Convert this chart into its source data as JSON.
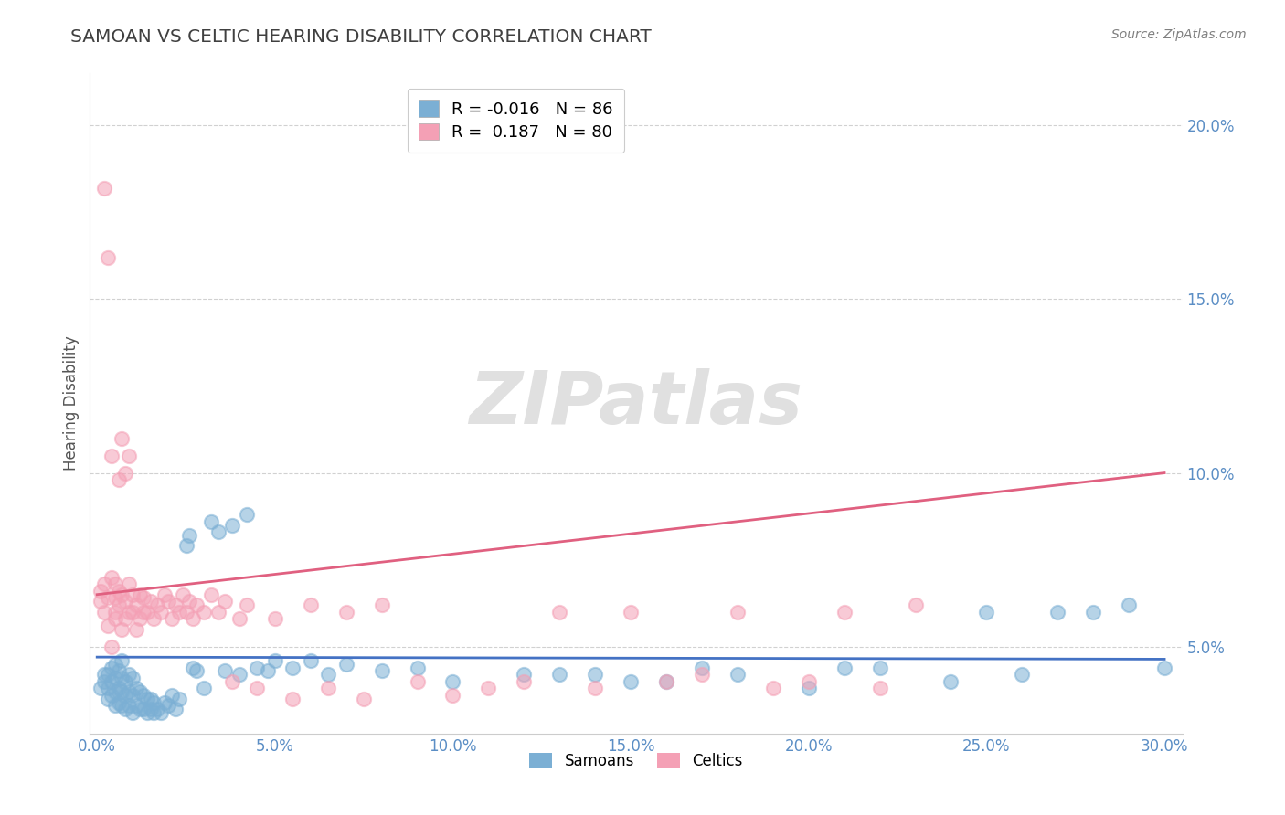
{
  "title": "SAMOAN VS CELTIC HEARING DISABILITY CORRELATION CHART",
  "source_text": "Source: ZipAtlas.com",
  "ylabel": "Hearing Disability",
  "xlim": [
    -0.002,
    0.305
  ],
  "ylim": [
    0.025,
    0.215
  ],
  "xticks": [
    0.0,
    0.05,
    0.1,
    0.15,
    0.2,
    0.25,
    0.3
  ],
  "xtick_labels": [
    "0.0%",
    "5.0%",
    "10.0%",
    "15.0%",
    "20.0%",
    "25.0%",
    "30.0%"
  ],
  "yticks": [
    0.05,
    0.1,
    0.15,
    0.2
  ],
  "ytick_labels": [
    "5.0%",
    "10.0%",
    "15.0%",
    "20.0%"
  ],
  "samoan_color": "#7BAFD4",
  "celtic_color": "#F4A0B5",
  "samoan_line_color": "#4472C4",
  "celtic_line_color": "#E06080",
  "samoan_R": -0.016,
  "samoan_N": 86,
  "celtic_R": 0.187,
  "celtic_N": 80,
  "watermark": "ZIPatlas",
  "background_color": "#FFFFFF",
  "grid_color": "#CCCCCC",
  "title_color": "#404040",
  "tick_color": "#5B8EC5",
  "ylabel_color": "#555555",
  "source_color": "#808080",
  "samoan_x": [
    0.001,
    0.002,
    0.002,
    0.003,
    0.003,
    0.003,
    0.004,
    0.004,
    0.004,
    0.005,
    0.005,
    0.005,
    0.005,
    0.006,
    0.006,
    0.006,
    0.007,
    0.007,
    0.007,
    0.007,
    0.008,
    0.008,
    0.008,
    0.009,
    0.009,
    0.009,
    0.01,
    0.01,
    0.01,
    0.011,
    0.011,
    0.012,
    0.012,
    0.013,
    0.013,
    0.014,
    0.014,
    0.015,
    0.015,
    0.016,
    0.016,
    0.017,
    0.018,
    0.019,
    0.02,
    0.021,
    0.022,
    0.023,
    0.025,
    0.026,
    0.027,
    0.028,
    0.03,
    0.032,
    0.034,
    0.036,
    0.038,
    0.04,
    0.042,
    0.045,
    0.048,
    0.05,
    0.055,
    0.06,
    0.065,
    0.07,
    0.08,
    0.09,
    0.1,
    0.12,
    0.14,
    0.16,
    0.18,
    0.2,
    0.22,
    0.24,
    0.26,
    0.27,
    0.28,
    0.29,
    0.13,
    0.15,
    0.17,
    0.21,
    0.25,
    0.3
  ],
  "samoan_y": [
    0.038,
    0.04,
    0.042,
    0.035,
    0.038,
    0.042,
    0.036,
    0.04,
    0.044,
    0.033,
    0.037,
    0.041,
    0.045,
    0.034,
    0.038,
    0.043,
    0.033,
    0.037,
    0.041,
    0.046,
    0.032,
    0.036,
    0.04,
    0.033,
    0.037,
    0.042,
    0.031,
    0.036,
    0.041,
    0.033,
    0.038,
    0.032,
    0.037,
    0.032,
    0.036,
    0.031,
    0.035,
    0.032,
    0.035,
    0.031,
    0.034,
    0.032,
    0.031,
    0.034,
    0.033,
    0.036,
    0.032,
    0.035,
    0.079,
    0.082,
    0.044,
    0.043,
    0.038,
    0.086,
    0.083,
    0.043,
    0.085,
    0.042,
    0.088,
    0.044,
    0.043,
    0.046,
    0.044,
    0.046,
    0.042,
    0.045,
    0.043,
    0.044,
    0.04,
    0.042,
    0.042,
    0.04,
    0.042,
    0.038,
    0.044,
    0.04,
    0.042,
    0.06,
    0.06,
    0.062,
    0.042,
    0.04,
    0.044,
    0.044,
    0.06,
    0.044
  ],
  "celtic_x": [
    0.001,
    0.001,
    0.002,
    0.002,
    0.002,
    0.003,
    0.003,
    0.003,
    0.004,
    0.004,
    0.004,
    0.005,
    0.005,
    0.005,
    0.005,
    0.006,
    0.006,
    0.006,
    0.007,
    0.007,
    0.007,
    0.008,
    0.008,
    0.008,
    0.009,
    0.009,
    0.009,
    0.01,
    0.01,
    0.011,
    0.011,
    0.012,
    0.012,
    0.013,
    0.013,
    0.014,
    0.015,
    0.016,
    0.017,
    0.018,
    0.019,
    0.02,
    0.021,
    0.022,
    0.023,
    0.024,
    0.025,
    0.026,
    0.027,
    0.028,
    0.03,
    0.032,
    0.034,
    0.036,
    0.038,
    0.04,
    0.042,
    0.045,
    0.05,
    0.055,
    0.06,
    0.065,
    0.07,
    0.075,
    0.08,
    0.09,
    0.1,
    0.11,
    0.12,
    0.13,
    0.14,
    0.15,
    0.16,
    0.17,
    0.18,
    0.19,
    0.2,
    0.21,
    0.22,
    0.23
  ],
  "celtic_y": [
    0.063,
    0.066,
    0.06,
    0.182,
    0.068,
    0.056,
    0.162,
    0.064,
    0.05,
    0.105,
    0.07,
    0.06,
    0.064,
    0.068,
    0.058,
    0.062,
    0.098,
    0.066,
    0.055,
    0.11,
    0.065,
    0.058,
    0.1,
    0.063,
    0.06,
    0.105,
    0.068,
    0.06,
    0.065,
    0.055,
    0.062,
    0.058,
    0.065,
    0.06,
    0.064,
    0.06,
    0.063,
    0.058,
    0.062,
    0.06,
    0.065,
    0.063,
    0.058,
    0.062,
    0.06,
    0.065,
    0.06,
    0.063,
    0.058,
    0.062,
    0.06,
    0.065,
    0.06,
    0.063,
    0.04,
    0.058,
    0.062,
    0.038,
    0.058,
    0.035,
    0.062,
    0.038,
    0.06,
    0.035,
    0.062,
    0.04,
    0.036,
    0.038,
    0.04,
    0.06,
    0.038,
    0.06,
    0.04,
    0.042,
    0.06,
    0.038,
    0.04,
    0.06,
    0.038,
    0.062
  ]
}
